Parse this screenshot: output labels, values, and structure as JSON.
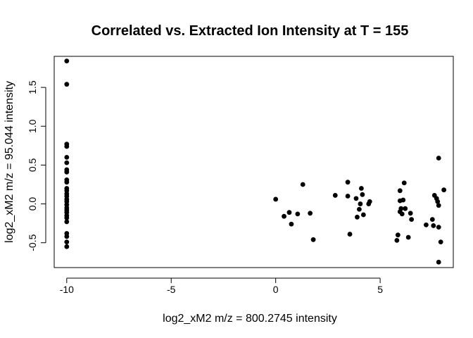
{
  "chart_data": {
    "type": "scatter",
    "title": "Correlated vs. Extracted Ion Intensity at T = 155",
    "xlabel": "log2_xM2 m/z = 800.2745 intensity",
    "ylabel": "log2_xM2 m/z = 95.044 intensity",
    "xlim": [
      -10.6,
      8.5
    ],
    "ylim": [
      -0.82,
      1.9
    ],
    "xticks": [
      -10,
      -5,
      0,
      5
    ],
    "yticks": [
      -0.5,
      0.0,
      0.5,
      1.0,
      1.5
    ],
    "xtick_labels": [
      "-10",
      "-5",
      "0",
      "5"
    ],
    "ytick_labels": [
      "-0.5",
      "0.0",
      "0.5",
      "1.0",
      "1.5"
    ],
    "grid": false,
    "points": [
      [
        -10,
        1.84
      ],
      [
        -10,
        1.54
      ],
      [
        -10,
        0.77
      ],
      [
        -10,
        0.74
      ],
      [
        -10,
        0.6
      ],
      [
        -10,
        0.53
      ],
      [
        -10,
        0.44
      ],
      [
        -10,
        0.41
      ],
      [
        -10,
        0.31
      ],
      [
        -10,
        0.28
      ],
      [
        -10,
        0.2
      ],
      [
        -10,
        0.17
      ],
      [
        -10,
        0.13
      ],
      [
        -10,
        0.1
      ],
      [
        -10,
        0.06
      ],
      [
        -10,
        0.03
      ],
      [
        -10,
        -0.01
      ],
      [
        -10,
        -0.05
      ],
      [
        -10,
        -0.08
      ],
      [
        -10,
        -0.11
      ],
      [
        -10,
        -0.15
      ],
      [
        -10,
        -0.18
      ],
      [
        -10,
        -0.23
      ],
      [
        -10,
        -0.38
      ],
      [
        -10,
        -0.42
      ],
      [
        -10,
        -0.49
      ],
      [
        -10,
        -0.55
      ],
      [
        0.0,
        0.06
      ],
      [
        0.4,
        -0.16
      ],
      [
        0.65,
        -0.11
      ],
      [
        0.75,
        -0.26
      ],
      [
        1.05,
        -0.13
      ],
      [
        1.3,
        0.25
      ],
      [
        1.65,
        -0.12
      ],
      [
        1.8,
        -0.46
      ],
      [
        2.85,
        0.11
      ],
      [
        3.45,
        0.1
      ],
      [
        3.45,
        0.28
      ],
      [
        3.55,
        -0.39
      ],
      [
        3.85,
        0.07
      ],
      [
        3.9,
        -0.17
      ],
      [
        4.0,
        -0.07
      ],
      [
        4.05,
        0.0
      ],
      [
        4.1,
        0.2
      ],
      [
        4.15,
        0.12
      ],
      [
        4.2,
        -0.14
      ],
      [
        4.45,
        0.0
      ],
      [
        4.5,
        0.03
      ],
      [
        5.8,
        -0.47
      ],
      [
        5.85,
        -0.4
      ],
      [
        5.95,
        0.04
      ],
      [
        5.95,
        0.17
      ],
      [
        5.95,
        -0.1
      ],
      [
        6.0,
        -0.06
      ],
      [
        6.05,
        -0.13
      ],
      [
        6.1,
        0.05
      ],
      [
        6.15,
        0.27
      ],
      [
        6.2,
        -0.06
      ],
      [
        6.35,
        -0.43
      ],
      [
        6.45,
        -0.12
      ],
      [
        6.5,
        -0.2
      ],
      [
        7.2,
        -0.27
      ],
      [
        7.5,
        -0.2
      ],
      [
        7.55,
        -0.28
      ],
      [
        7.6,
        0.11
      ],
      [
        7.7,
        0.07
      ],
      [
        7.75,
        0.03
      ],
      [
        7.8,
        -0.3
      ],
      [
        7.8,
        -0.02
      ],
      [
        7.8,
        0.59
      ],
      [
        7.8,
        -0.75
      ],
      [
        7.9,
        -0.49
      ],
      [
        8.05,
        0.18
      ]
    ]
  }
}
